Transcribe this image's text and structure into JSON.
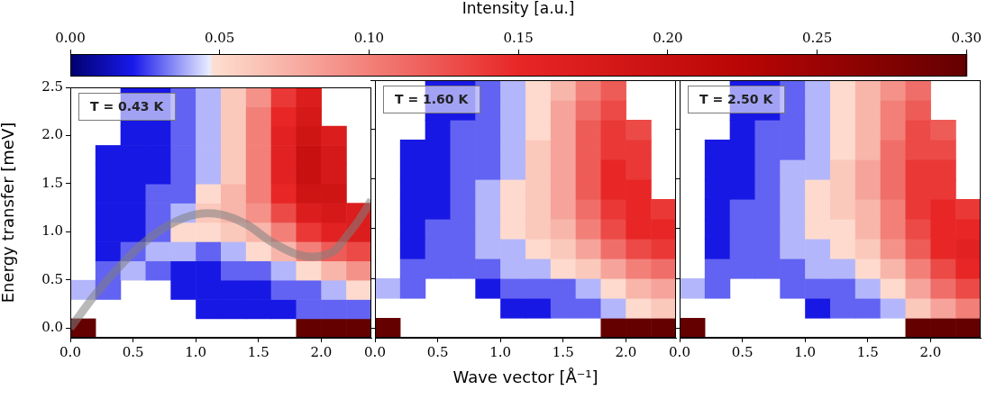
{
  "chart_data": {
    "type": "heatmap",
    "xlabel": "Wave vector [Å⁻¹]",
    "ylabel": "Energy transfer [meV]",
    "grid": false,
    "xlim": [
      0,
      2.4
    ],
    "ylim": [
      -0.1,
      2.5
    ],
    "xticks": [
      {
        "value": 0,
        "label": "0.0"
      },
      0.5,
      {
        "value": 1,
        "label": "1.0"
      },
      1.5,
      {
        "value": 2,
        "label": "2.0"
      }
    ],
    "yticks": [
      {
        "value": 0,
        "label": "0.0"
      },
      0.5,
      {
        "value": 1,
        "label": "1.0"
      },
      1.5,
      {
        "value": 2,
        "label": "2.0"
      },
      2.5
    ],
    "x_edges": [
      0,
      0.2,
      0.4,
      0.6,
      0.8,
      1.0,
      1.2,
      1.4,
      1.6,
      1.8,
      2.0,
      2.2,
      2.4
    ],
    "y_edges": [
      -0.1,
      0.1,
      0.3,
      0.5,
      0.7,
      0.9,
      1.1,
      1.3,
      1.5,
      1.7,
      1.9,
      2.1,
      2.3,
      2.5
    ],
    "colorbar": {
      "label": "Intensity [a.u.]",
      "range": [
        0,
        0.3
      ],
      "ticks": [
        {
          "value": 0,
          "label": "0.00"
        },
        {
          "value": 0.05,
          "label": "0.05"
        },
        {
          "value": 0.1,
          "label": "0.10"
        },
        {
          "value": 0.15,
          "label": "0.15"
        },
        {
          "value": 0.2,
          "label": "0.20"
        },
        {
          "value": 0.25,
          "label": "0.25"
        },
        {
          "value": 0.3,
          "label": "0.30"
        }
      ]
    },
    "panels": [
      {
        "annotation": "T = 0.43 K",
        "cells": [
          [
            0.3,
            null,
            null,
            null,
            null,
            null,
            null,
            null,
            null,
            0.3,
            0.3,
            0.3
          ],
          [
            null,
            null,
            null,
            null,
            null,
            0.02,
            0.02,
            0.02,
            0.02,
            0.03,
            0.03,
            0.03
          ],
          [
            0.04,
            0.03,
            null,
            null,
            0.02,
            0.02,
            0.02,
            0.02,
            0.03,
            0.03,
            0.04,
            0.05
          ],
          [
            null,
            0.03,
            0.04,
            0.03,
            0.02,
            0.02,
            0.03,
            0.03,
            0.04,
            0.05,
            0.07,
            0.09
          ],
          [
            null,
            0.02,
            0.03,
            0.04,
            0.04,
            0.03,
            0.04,
            0.05,
            0.07,
            0.1,
            0.12,
            0.13
          ],
          [
            null,
            0.02,
            0.02,
            0.03,
            0.05,
            0.05,
            0.06,
            0.07,
            0.1,
            0.14,
            0.16,
            0.17
          ],
          [
            null,
            0.02,
            0.02,
            0.03,
            0.04,
            0.06,
            0.07,
            0.09,
            0.13,
            0.17,
            0.18,
            0.17
          ],
          [
            null,
            0.02,
            0.02,
            0.03,
            0.03,
            0.05,
            0.07,
            0.1,
            0.15,
            0.19,
            0.19,
            null
          ],
          [
            null,
            0.02,
            0.02,
            0.02,
            0.03,
            0.04,
            0.06,
            0.1,
            0.16,
            0.2,
            0.18,
            null
          ],
          [
            null,
            0.02,
            0.02,
            0.02,
            0.03,
            0.04,
            0.06,
            0.1,
            0.16,
            0.2,
            0.18,
            null
          ],
          [
            null,
            null,
            0.02,
            0.02,
            0.03,
            0.04,
            0.06,
            0.1,
            0.16,
            0.19,
            0.17,
            null
          ],
          [
            null,
            null,
            0.02,
            0.02,
            0.03,
            0.04,
            0.06,
            0.1,
            0.15,
            0.18,
            null,
            null
          ],
          [
            null,
            null,
            0.02,
            0.02,
            0.03,
            0.04,
            0.06,
            0.09,
            0.14,
            0.17,
            null,
            null
          ]
        ],
        "series": [
          {
            "type": "line",
            "color": "#808080",
            "x": [
              0,
              0.2,
              0.4,
              0.6,
              0.8,
              1.0,
              1.2,
              1.4,
              1.6,
              1.8,
              1.95,
              2.1,
              2.2,
              2.3,
              2.4
            ],
            "values": [
              0,
              0.35,
              0.65,
              0.9,
              1.08,
              1.18,
              1.18,
              1.08,
              0.9,
              0.77,
              0.74,
              0.8,
              0.95,
              1.12,
              1.33
            ]
          }
        ]
      },
      {
        "annotation": "T = 1.60 K",
        "tick_labels": "x",
        "cells": [
          [
            0.3,
            null,
            null,
            null,
            null,
            null,
            null,
            null,
            null,
            0.3,
            0.3,
            0.3
          ],
          [
            null,
            null,
            null,
            null,
            null,
            0.02,
            0.02,
            0.03,
            0.03,
            0.04,
            0.05,
            0.06
          ],
          [
            0.04,
            0.03,
            null,
            null,
            0.02,
            0.03,
            0.03,
            0.03,
            0.04,
            0.05,
            0.07,
            0.08
          ],
          [
            null,
            0.03,
            0.03,
            0.03,
            0.03,
            0.04,
            0.04,
            0.05,
            0.06,
            0.08,
            0.1,
            0.11
          ],
          [
            null,
            0.02,
            0.03,
            0.03,
            0.04,
            0.04,
            0.05,
            0.06,
            0.08,
            0.11,
            0.13,
            0.14
          ],
          [
            null,
            0.02,
            0.03,
            0.03,
            0.04,
            0.05,
            0.06,
            0.07,
            0.1,
            0.13,
            0.15,
            0.15
          ],
          [
            null,
            0.02,
            0.02,
            0.03,
            0.04,
            0.05,
            0.06,
            0.08,
            0.11,
            0.14,
            0.15,
            0.14
          ],
          [
            null,
            0.02,
            0.02,
            0.03,
            0.04,
            0.05,
            0.06,
            0.08,
            0.12,
            0.15,
            0.15,
            null
          ],
          [
            null,
            0.02,
            0.02,
            0.03,
            0.03,
            0.04,
            0.06,
            0.08,
            0.12,
            0.15,
            0.14,
            null
          ],
          [
            null,
            0.02,
            0.02,
            0.03,
            0.03,
            0.04,
            0.06,
            0.08,
            0.12,
            0.14,
            0.14,
            null
          ],
          [
            null,
            null,
            0.02,
            0.03,
            0.03,
            0.04,
            0.05,
            0.08,
            0.12,
            0.14,
            0.13,
            null
          ],
          [
            null,
            null,
            0.02,
            0.02,
            0.03,
            0.04,
            0.05,
            0.08,
            0.11,
            0.13,
            null,
            null
          ],
          [
            null,
            null,
            0.02,
            0.02,
            0.03,
            0.04,
            0.05,
            0.07,
            0.1,
            0.12,
            null,
            null
          ]
        ]
      },
      {
        "annotation": "T = 2.50 K",
        "tick_labels": "x",
        "cells": [
          [
            0.3,
            null,
            null,
            null,
            null,
            null,
            null,
            null,
            null,
            0.3,
            0.3,
            0.3
          ],
          [
            null,
            null,
            null,
            null,
            null,
            0.02,
            0.03,
            0.03,
            0.04,
            0.06,
            0.08,
            0.1
          ],
          [
            0.04,
            0.03,
            null,
            null,
            0.03,
            0.03,
            0.03,
            0.04,
            0.05,
            0.08,
            0.11,
            0.13
          ],
          [
            null,
            0.03,
            0.03,
            0.03,
            0.03,
            0.04,
            0.04,
            0.05,
            0.07,
            0.1,
            0.13,
            0.15
          ],
          [
            null,
            0.02,
            0.03,
            0.03,
            0.04,
            0.04,
            0.05,
            0.06,
            0.09,
            0.12,
            0.15,
            0.16
          ],
          [
            null,
            0.02,
            0.03,
            0.03,
            0.04,
            0.05,
            0.05,
            0.07,
            0.1,
            0.13,
            0.15,
            0.15
          ],
          [
            null,
            0.02,
            0.03,
            0.03,
            0.04,
            0.05,
            0.06,
            0.07,
            0.1,
            0.14,
            0.15,
            0.14
          ],
          [
            null,
            0.02,
            0.02,
            0.03,
            0.04,
            0.05,
            0.06,
            0.08,
            0.11,
            0.14,
            0.14,
            null
          ],
          [
            null,
            0.02,
            0.02,
            0.03,
            0.04,
            0.04,
            0.06,
            0.08,
            0.11,
            0.14,
            0.14,
            null
          ],
          [
            null,
            0.02,
            0.02,
            0.03,
            0.03,
            0.04,
            0.05,
            0.07,
            0.11,
            0.13,
            0.13,
            null
          ],
          [
            null,
            null,
            0.02,
            0.03,
            0.03,
            0.04,
            0.05,
            0.07,
            0.1,
            0.13,
            0.12,
            null
          ],
          [
            null,
            null,
            0.02,
            0.02,
            0.03,
            0.04,
            0.05,
            0.07,
            0.1,
            0.12,
            null,
            null
          ],
          [
            null,
            null,
            0.02,
            0.02,
            0.03,
            0.04,
            0.05,
            0.07,
            0.09,
            0.11,
            null,
            null
          ]
        ]
      }
    ]
  }
}
